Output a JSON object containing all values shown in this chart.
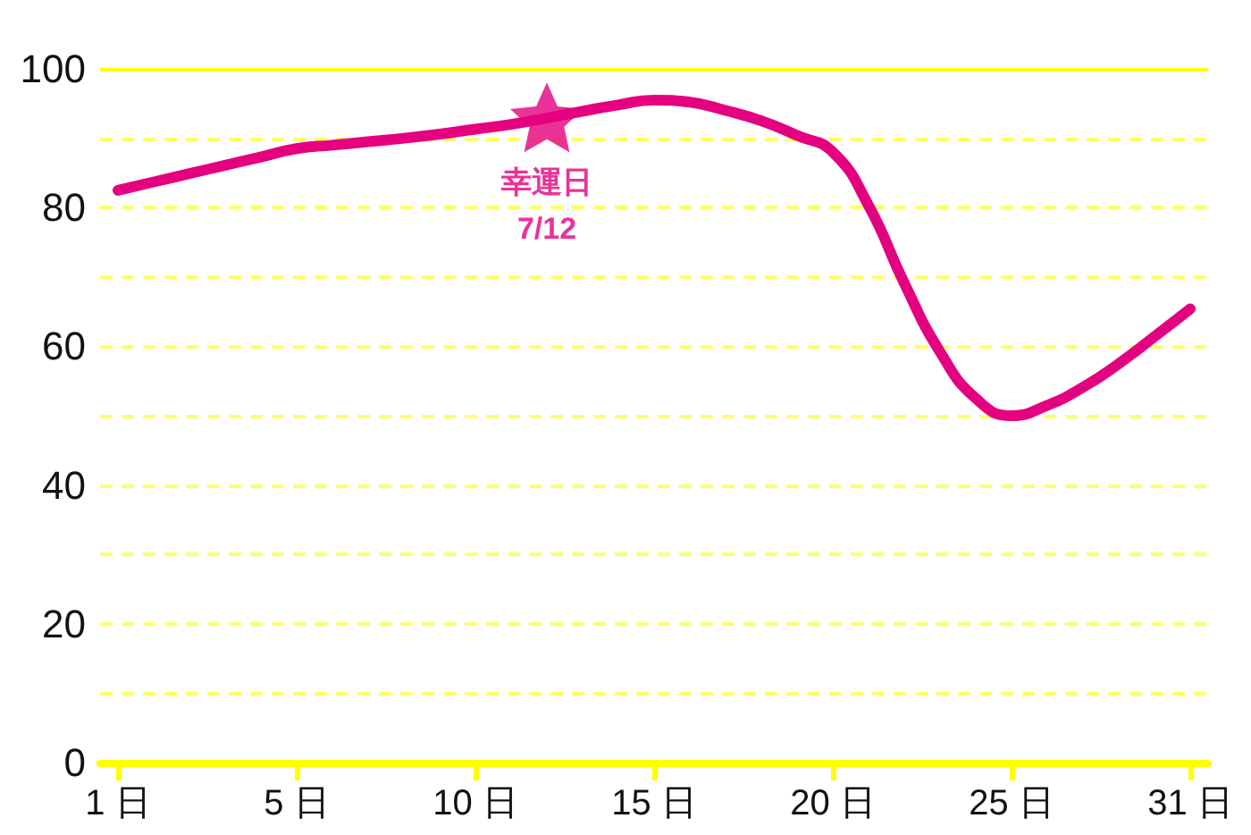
{
  "chart_data": {
    "type": "line",
    "categories": [
      "1 日",
      null,
      null,
      null,
      null,
      "5 日",
      null,
      null,
      null,
      null,
      "10 日",
      null,
      null,
      null,
      null,
      "15 日",
      null,
      null,
      null,
      null,
      "20 日",
      null,
      null,
      null,
      null,
      "25 日",
      null,
      null,
      null,
      null,
      "31 日"
    ],
    "series": [
      {
        "color": "#e4007f",
        "values": [
          82.5,
          83.7,
          84.9,
          86.1,
          87.3,
          88.5,
          89,
          89.5,
          90,
          90.6,
          91.3,
          92,
          92.9,
          93.9,
          94.8,
          95.5,
          95.2,
          94,
          92.5,
          90.4,
          88,
          80.3,
          69.1,
          59.2,
          52.5,
          50,
          51.5,
          54.1,
          57.5,
          61.4,
          65.4
        ]
      },
      {
        "name": "幸運日\n7/12",
        "type": "scatter",
        "marker": "star",
        "color": "#e4007f",
        "values": [
          null,
          null,
          null,
          null,
          null,
          null,
          null,
          null,
          null,
          null,
          null,
          null,
          93,
          null,
          null,
          null,
          null,
          null,
          null,
          null,
          null,
          null,
          null,
          null,
          null,
          null,
          null,
          null,
          null,
          null,
          null
        ]
      }
    ],
    "marker": "none",
    "ylim": [
      0,
      100
    ],
    "yticks": [
      0,
      {
        "value": 10,
        "label": null
      },
      20,
      {
        "value": 30,
        "label": null
      },
      40,
      {
        "value": 50,
        "label": null
      },
      60,
      {
        "value": 70,
        "label": null
      },
      80,
      {
        "value": 90,
        "label": null
      },
      100
    ],
    "grid": "y"
  }
}
